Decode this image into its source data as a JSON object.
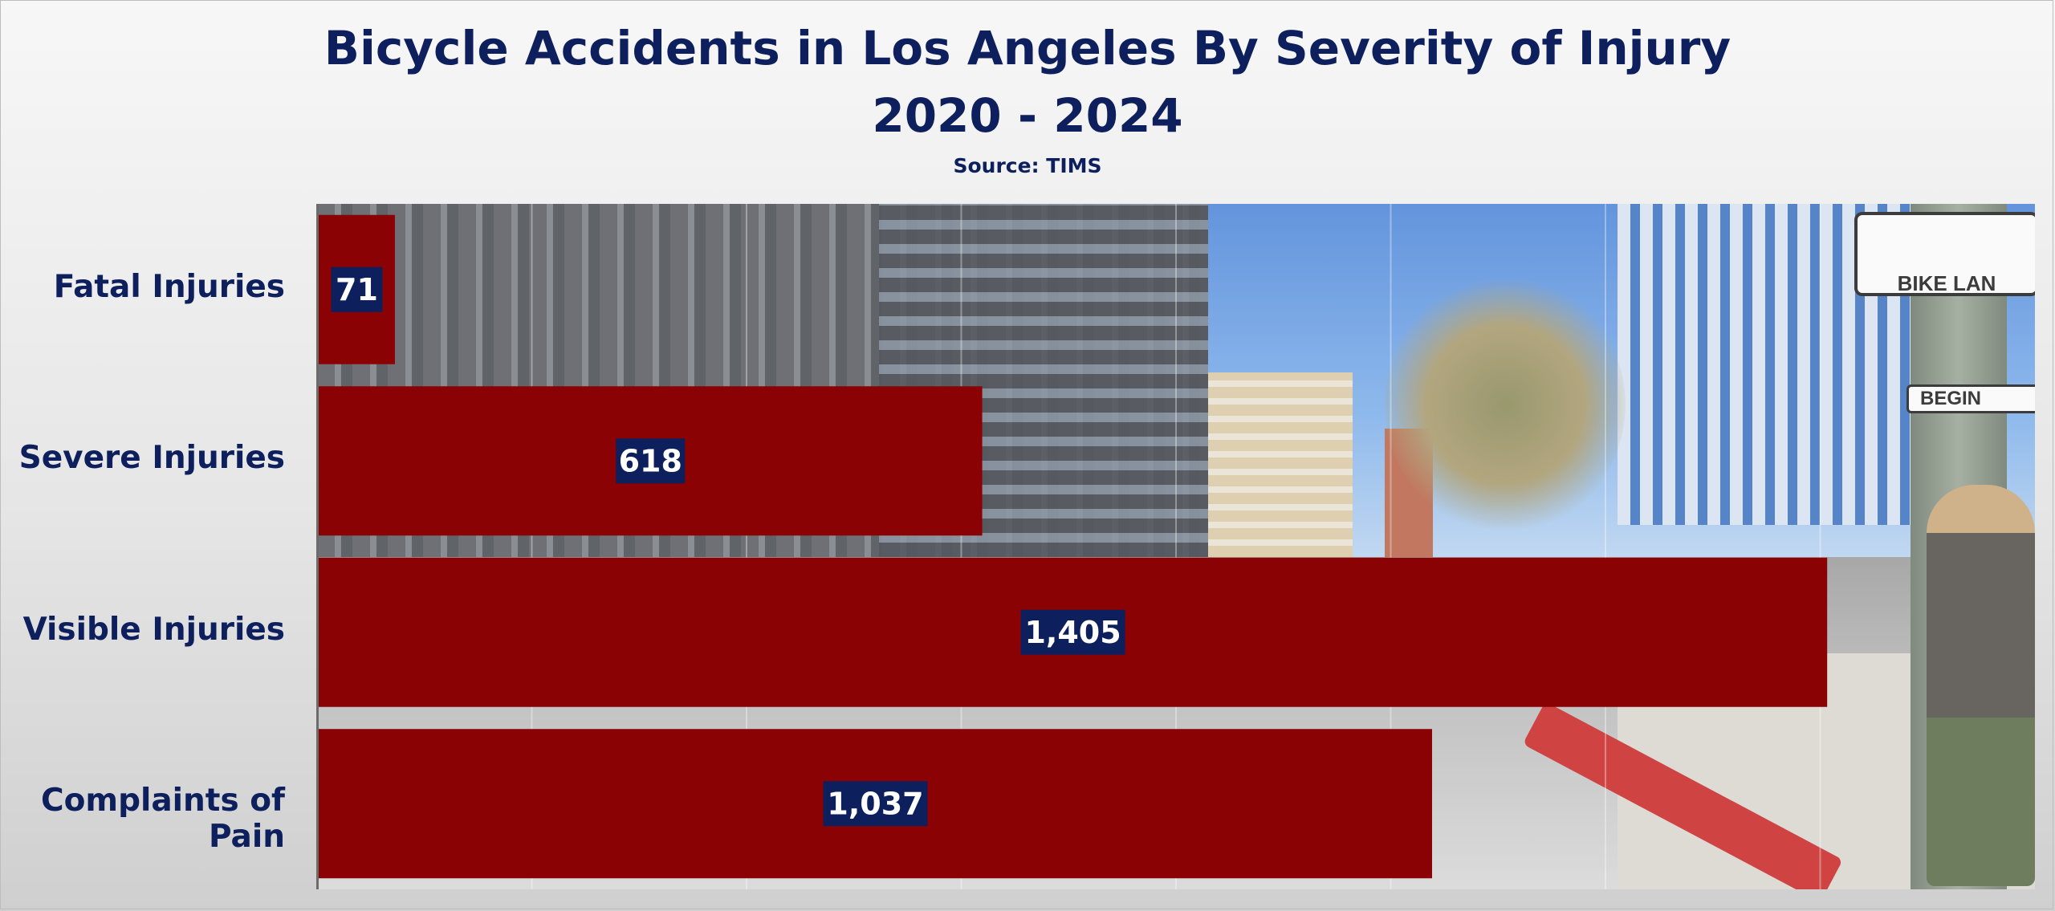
{
  "chart_data": {
    "type": "bar",
    "orientation": "horizontal",
    "title": "Bicycle Accidents in Los Angeles By Severity of Injury",
    "subtitle": "2020 - 2024",
    "source": "Source: TIMS",
    "categories": [
      "Fatal Injuries",
      "Severe Injuries",
      "Visible Injuries",
      "Complaints of Pain"
    ],
    "values": [
      71,
      618,
      1405,
      1037
    ],
    "value_labels": [
      "71",
      "618",
      "1,405",
      "1,037"
    ],
    "xlim": [
      0,
      1600
    ],
    "grid": true,
    "legend": "none",
    "colors": {
      "bar": "#8b0205",
      "label_box": "#0d1f5c",
      "label_text": "#ffffff",
      "text": "#0d1f5c"
    }
  },
  "background_signs": {
    "bike_lane": "BIKE LAN",
    "begin": "BEGIN"
  }
}
